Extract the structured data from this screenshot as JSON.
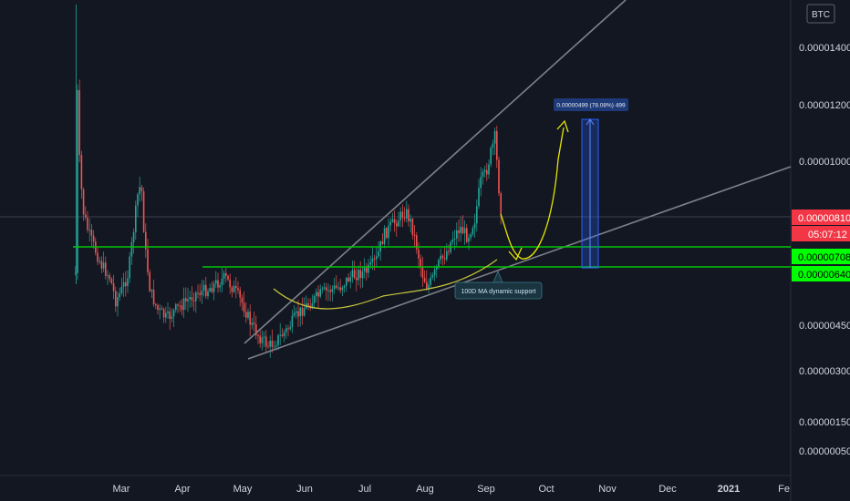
{
  "symbol_badge": "BTC",
  "colors": {
    "background": "#131722",
    "up": "#26a69a",
    "down": "#ef5350",
    "support": "#00c805",
    "trend": "#8a8d96",
    "ma": "#c8c83a",
    "projection": "#e6e600",
    "measure": "#2962ff",
    "current_price": "#f23645"
  },
  "chart_data": {
    "type": "candlestick",
    "y_unit": "BTC",
    "ylim": [
      1e-07,
      1.5e-05
    ],
    "y_scale": "log",
    "y_ticks": [
      "0.00001400",
      "0.00001200",
      "0.00001000",
      "0.00000450",
      "0.00000300",
      "0.00000150",
      "0.00000050"
    ],
    "x_ticks": [
      "Mar",
      "Apr",
      "May",
      "Jun",
      "Jul",
      "Aug",
      "Sep",
      "Oct",
      "Nov",
      "Dec",
      "2021",
      "Fe"
    ],
    "price_tags": [
      {
        "label": "0.00000810",
        "kind": "current-price"
      },
      {
        "label": "05:07:12",
        "kind": "countdown"
      },
      {
        "label": "0.00000708",
        "kind": "support"
      },
      {
        "label": "0.00000640",
        "kind": "support"
      }
    ],
    "horizontal_levels": [
      7.08e-06,
      6.4e-06
    ],
    "annotations": {
      "ma_label": "100D MA dynamic support",
      "measure_label": "0.00000499 (78.08%) 499"
    },
    "grid": false
  }
}
